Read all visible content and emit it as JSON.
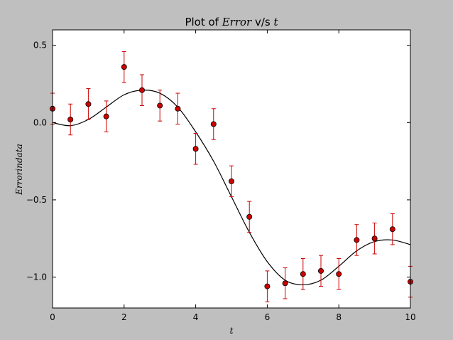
{
  "chart_data": {
    "type": "scatter",
    "title_prefix": "Plot of ",
    "title_var": "Error",
    "title_mid": " v/s ",
    "title_tvar": "t",
    "xlabel": "t",
    "ylabel": "Errorindata",
    "xlim": [
      0,
      10
    ],
    "ylim": [
      -1.2,
      0.6
    ],
    "xticks": [
      0,
      2,
      4,
      6,
      8,
      10
    ],
    "xtick_labels": [
      "0",
      "2",
      "4",
      "6",
      "8",
      "10"
    ],
    "yticks": [
      0.5,
      0.0,
      -0.5,
      -1.0
    ],
    "ytick_labels": [
      "0.5",
      "0.0",
      "−0.5",
      "−1.0"
    ],
    "grid": false,
    "legend": false,
    "series": [
      {
        "kind": "errorbar-points",
        "color": "#cc0000",
        "error": 0.1,
        "x": [
          0,
          0.5,
          1,
          1.5,
          2,
          2.5,
          3,
          3.5,
          4,
          4.5,
          5,
          5.5,
          6,
          6.5,
          7,
          7.5,
          8,
          8.5,
          9,
          9.5,
          10
        ],
        "y": [
          0.09,
          0.02,
          0.12,
          0.04,
          0.36,
          0.21,
          0.11,
          0.09,
          -0.17,
          -0.01,
          -0.38,
          -0.61,
          -1.06,
          -1.04,
          -0.98,
          -0.96,
          -0.98,
          -0.76,
          -0.75,
          -0.69,
          -1.03
        ]
      },
      {
        "kind": "line",
        "color": "#000000",
        "x": [
          0,
          0.5,
          1,
          1.5,
          2,
          2.5,
          3,
          3.5,
          4,
          4.5,
          5,
          5.5,
          6,
          6.5,
          7,
          7.5,
          8,
          8.5,
          9,
          9.5,
          10
        ],
        "y": [
          0.0,
          -0.02,
          0.02,
          0.1,
          0.18,
          0.21,
          0.19,
          0.1,
          -0.06,
          -0.25,
          -0.48,
          -0.71,
          -0.9,
          -1.02,
          -1.05,
          -1.02,
          -0.93,
          -0.83,
          -0.77,
          -0.76,
          -0.79
        ]
      }
    ]
  }
}
